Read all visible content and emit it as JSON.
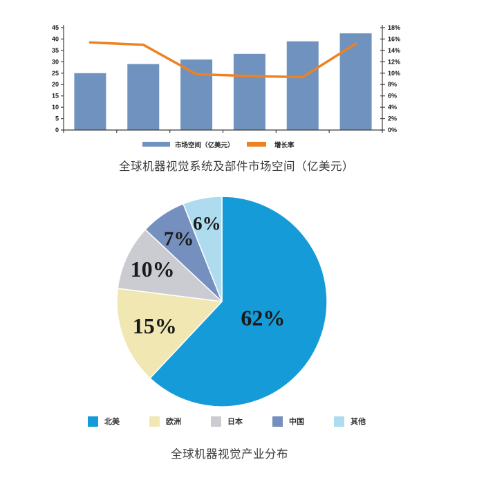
{
  "page": {
    "background": "#ffffff"
  },
  "chart_data": [
    {
      "type": "bar",
      "subtype": "bar+line-combo",
      "title": "全球机器视觉系统及部件市场空间（亿美元）",
      "categories": [
        "",
        "",
        "",
        "",
        "",
        ""
      ],
      "x_labels_visible": false,
      "grid": false,
      "legend_position": "bottom",
      "series": [
        {
          "name": "市场空间（亿美元）",
          "render": "bar",
          "axis": "left",
          "color": "#7092be",
          "values": [
            25,
            29,
            31,
            33.5,
            39,
            42.5
          ]
        },
        {
          "name": "增长率",
          "render": "line",
          "axis": "right",
          "color": "#ee8122",
          "values": [
            15.4,
            15.0,
            9.8,
            9.5,
            9.3,
            15.2
          ]
        }
      ],
      "left_axis": {
        "min": 0,
        "max": 45,
        "step": 5,
        "suffix": ""
      },
      "right_axis": {
        "min": 0,
        "max": 18,
        "step": 2,
        "suffix": "%"
      }
    },
    {
      "type": "pie",
      "title": "全球机器视觉产业分布",
      "start_angle_deg": 0,
      "direction": "clockwise",
      "label_format": "percent",
      "legend_position": "bottom",
      "slices": [
        {
          "label": "北美",
          "value": 62,
          "color": "#159cd8"
        },
        {
          "label": "欧洲",
          "value": 15,
          "color": "#f1e7b2"
        },
        {
          "label": "日本",
          "value": 10,
          "color": "#cbccd1"
        },
        {
          "label": "中国",
          "value": 7,
          "color": "#7590bf"
        },
        {
          "label": "其他",
          "value": 6,
          "color": "#aedcee"
        }
      ],
      "label_radius": [
        0.42,
        0.68,
        0.73,
        0.73,
        0.76
      ],
      "label_font_px": [
        32,
        32,
        32,
        29,
        27
      ]
    }
  ]
}
